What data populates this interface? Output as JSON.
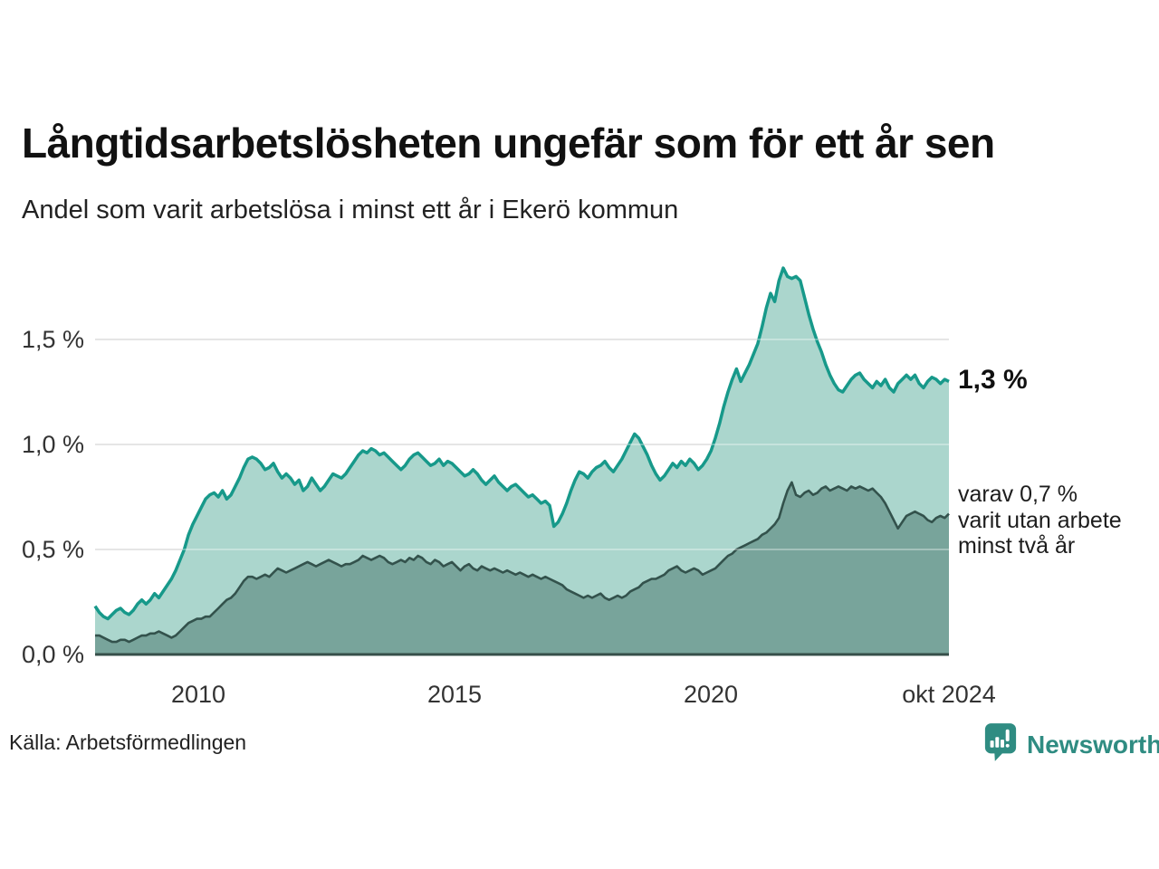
{
  "header": {
    "title": "Långtidsarbetslösheten ungefär som för ett år sen",
    "subtitle": "Andel som varit arbetslösa i minst ett år i Ekerö kommun"
  },
  "annotations": {
    "latest_total": "1,3 %",
    "secondary_lines": [
      "varav 0,7 %",
      "varit utan arbete",
      "minst två år"
    ]
  },
  "footer": {
    "source": "Källa: Arbetsförmedlingen",
    "brand": "Newsworthy"
  },
  "colors": {
    "series1_line": "#17998a",
    "series1_fill": "#abd6cd",
    "series2_line": "#33524c",
    "series2_fill": "#78a49b",
    "gridline": "#d9d9d9",
    "gridline_overlay": "rgba(255,255,255,0.33)",
    "axis_baseline": "#364f4a",
    "brand_teal": "#2f8c82",
    "text_dark": "#111111"
  },
  "chart_data": {
    "type": "area",
    "title": "Långtidsarbetslösheten ungefär som för ett år sen",
    "subtitle": "Andel som varit arbetslösa i minst ett år i Ekerö kommun",
    "x_unit": "month",
    "x_start": "2008-01",
    "x_end": "2024-10",
    "y_unit": "%",
    "ylim": [
      0,
      1.9
    ],
    "grid": true,
    "yticks": [
      {
        "value": 0.0,
        "label": "0,0 %"
      },
      {
        "value": 0.5,
        "label": "0,5 %"
      },
      {
        "value": 1.0,
        "label": "1,0 %"
      },
      {
        "value": 1.5,
        "label": "1,5 %"
      }
    ],
    "xticks": [
      {
        "year": 2010.0,
        "label": "2010"
      },
      {
        "year": 2015.0,
        "label": "2015"
      },
      {
        "year": 2020.0,
        "label": "2020"
      },
      {
        "year": 2024.75,
        "label": "okt 2024"
      }
    ],
    "series": [
      {
        "name": "Arbetslösa minst ett år",
        "latest_value": 1.3,
        "latest_label": "1,3 %",
        "values": [
          0.23,
          0.2,
          0.18,
          0.17,
          0.19,
          0.21,
          0.22,
          0.2,
          0.19,
          0.21,
          0.24,
          0.26,
          0.24,
          0.26,
          0.29,
          0.27,
          0.3,
          0.33,
          0.36,
          0.4,
          0.45,
          0.5,
          0.57,
          0.62,
          0.66,
          0.7,
          0.74,
          0.76,
          0.77,
          0.75,
          0.78,
          0.74,
          0.76,
          0.8,
          0.84,
          0.89,
          0.93,
          0.94,
          0.93,
          0.91,
          0.88,
          0.89,
          0.91,
          0.87,
          0.84,
          0.86,
          0.84,
          0.81,
          0.83,
          0.78,
          0.8,
          0.84,
          0.81,
          0.78,
          0.8,
          0.83,
          0.86,
          0.85,
          0.84,
          0.86,
          0.89,
          0.92,
          0.95,
          0.97,
          0.96,
          0.98,
          0.97,
          0.95,
          0.96,
          0.94,
          0.92,
          0.9,
          0.88,
          0.9,
          0.93,
          0.95,
          0.96,
          0.94,
          0.92,
          0.9,
          0.91,
          0.93,
          0.9,
          0.92,
          0.91,
          0.89,
          0.87,
          0.85,
          0.86,
          0.88,
          0.86,
          0.83,
          0.81,
          0.83,
          0.85,
          0.82,
          0.8,
          0.78,
          0.8,
          0.81,
          0.79,
          0.77,
          0.75,
          0.76,
          0.74,
          0.72,
          0.73,
          0.71,
          0.61,
          0.63,
          0.67,
          0.72,
          0.78,
          0.83,
          0.87,
          0.86,
          0.84,
          0.87,
          0.89,
          0.9,
          0.92,
          0.89,
          0.87,
          0.9,
          0.93,
          0.97,
          1.01,
          1.05,
          1.03,
          0.99,
          0.95,
          0.9,
          0.86,
          0.83,
          0.85,
          0.88,
          0.91,
          0.89,
          0.92,
          0.9,
          0.93,
          0.91,
          0.88,
          0.9,
          0.93,
          0.97,
          1.03,
          1.1,
          1.18,
          1.25,
          1.31,
          1.36,
          1.3,
          1.34,
          1.38,
          1.43,
          1.48,
          1.56,
          1.65,
          1.72,
          1.68,
          1.78,
          1.84,
          1.8,
          1.79,
          1.8,
          1.78,
          1.7,
          1.62,
          1.55,
          1.49,
          1.44,
          1.38,
          1.33,
          1.29,
          1.26,
          1.25,
          1.28,
          1.31,
          1.33,
          1.34,
          1.31,
          1.29,
          1.27,
          1.3,
          1.28,
          1.31,
          1.27,
          1.25,
          1.29,
          1.31,
          1.33,
          1.31,
          1.33,
          1.29,
          1.27,
          1.3,
          1.32,
          1.31,
          1.29,
          1.31,
          1.3
        ]
      },
      {
        "name": "Utan arbete minst två år",
        "latest_value": 0.7,
        "latest_label": "varav 0,7 % varit utan arbete minst två år",
        "values": [
          0.09,
          0.09,
          0.08,
          0.07,
          0.06,
          0.06,
          0.07,
          0.07,
          0.06,
          0.07,
          0.08,
          0.09,
          0.09,
          0.1,
          0.1,
          0.11,
          0.1,
          0.09,
          0.08,
          0.09,
          0.11,
          0.13,
          0.15,
          0.16,
          0.17,
          0.17,
          0.18,
          0.18,
          0.2,
          0.22,
          0.24,
          0.26,
          0.27,
          0.29,
          0.32,
          0.35,
          0.37,
          0.37,
          0.36,
          0.37,
          0.38,
          0.37,
          0.39,
          0.41,
          0.4,
          0.39,
          0.4,
          0.41,
          0.42,
          0.43,
          0.44,
          0.43,
          0.42,
          0.43,
          0.44,
          0.45,
          0.44,
          0.43,
          0.42,
          0.43,
          0.43,
          0.44,
          0.45,
          0.47,
          0.46,
          0.45,
          0.46,
          0.47,
          0.46,
          0.44,
          0.43,
          0.44,
          0.45,
          0.44,
          0.46,
          0.45,
          0.47,
          0.46,
          0.44,
          0.43,
          0.45,
          0.44,
          0.42,
          0.43,
          0.44,
          0.42,
          0.4,
          0.42,
          0.43,
          0.41,
          0.4,
          0.42,
          0.41,
          0.4,
          0.41,
          0.4,
          0.39,
          0.4,
          0.39,
          0.38,
          0.39,
          0.38,
          0.37,
          0.38,
          0.37,
          0.36,
          0.37,
          0.36,
          0.35,
          0.34,
          0.33,
          0.31,
          0.3,
          0.29,
          0.28,
          0.27,
          0.28,
          0.27,
          0.28,
          0.29,
          0.27,
          0.26,
          0.27,
          0.28,
          0.27,
          0.28,
          0.3,
          0.31,
          0.32,
          0.34,
          0.35,
          0.36,
          0.36,
          0.37,
          0.38,
          0.4,
          0.41,
          0.42,
          0.4,
          0.39,
          0.4,
          0.41,
          0.4,
          0.38,
          0.39,
          0.4,
          0.41,
          0.43,
          0.45,
          0.47,
          0.48,
          0.5,
          0.51,
          0.52,
          0.53,
          0.54,
          0.55,
          0.57,
          0.58,
          0.6,
          0.62,
          0.65,
          0.72,
          0.78,
          0.82,
          0.76,
          0.75,
          0.77,
          0.78,
          0.76,
          0.77,
          0.79,
          0.8,
          0.78,
          0.79,
          0.8,
          0.79,
          0.78,
          0.8,
          0.79,
          0.8,
          0.79,
          0.78,
          0.79,
          0.77,
          0.75,
          0.72,
          0.68,
          0.64,
          0.6,
          0.63,
          0.66,
          0.67,
          0.68,
          0.67,
          0.66,
          0.64,
          0.63,
          0.65,
          0.66,
          0.65,
          0.67
        ]
      }
    ]
  }
}
